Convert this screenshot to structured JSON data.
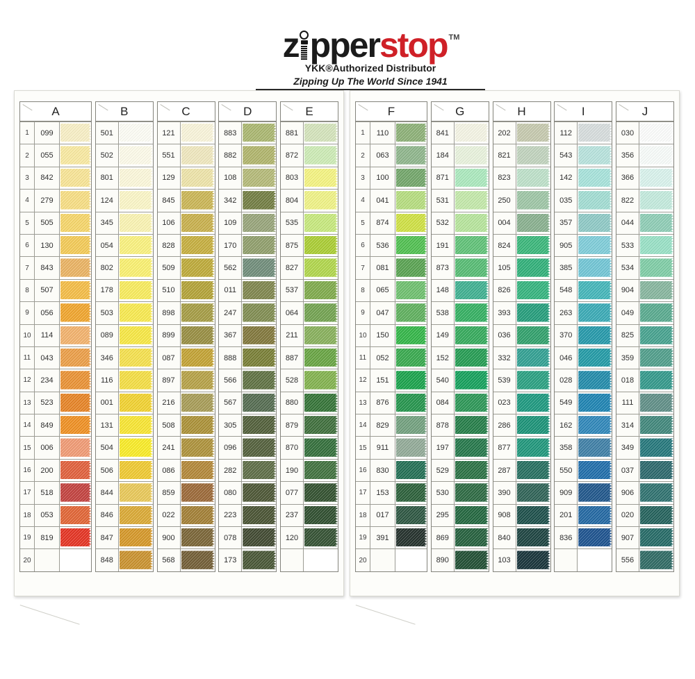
{
  "brand": {
    "logo_part1": "z",
    "logo_part2": "pper",
    "logo_part3": "stop",
    "trademark": "TM",
    "subtitle": "YKK®Authorized Distributor",
    "tagline": "Zipping Up The World Since 1941",
    "logo_black_color": "#1b1b1b",
    "logo_red_color": "#cf2027"
  },
  "pages": [
    {
      "side": "left",
      "columns": [
        {
          "letter": "A",
          "numbered": true,
          "rows": [
            {
              "n": "1",
              "c": "099",
              "hex": "#F7EEC3"
            },
            {
              "n": "2",
              "c": "055",
              "hex": "#F8E89E"
            },
            {
              "n": "3",
              "c": "842",
              "hex": "#F7E392"
            },
            {
              "n": "4",
              "c": "279",
              "hex": "#F6DC80"
            },
            {
              "n": "5",
              "c": "505",
              "hex": "#F5D465"
            },
            {
              "n": "6",
              "c": "130",
              "hex": "#F2C851"
            },
            {
              "n": "7",
              "c": "843",
              "hex": "#E9B05E"
            },
            {
              "n": "8",
              "c": "507",
              "hex": "#F3BA41"
            },
            {
              "n": "9",
              "c": "056",
              "hex": "#EFA227"
            },
            {
              "n": "10",
              "c": "114",
              "hex": "#F1AF68"
            },
            {
              "n": "11",
              "c": "043",
              "hex": "#EA9B42"
            },
            {
              "n": "12",
              "c": "234",
              "hex": "#E88E2E"
            },
            {
              "n": "13",
              "c": "523",
              "hex": "#E5801F"
            },
            {
              "n": "14",
              "c": "849",
              "hex": "#EE8C1C"
            },
            {
              "n": "15",
              "c": "006",
              "hex": "#EF9770"
            },
            {
              "n": "16",
              "c": "200",
              "hex": "#DF5B36"
            },
            {
              "n": "17",
              "c": "518",
              "hex": "#C03C39"
            },
            {
              "n": "18",
              "c": "053",
              "hex": "#E0602F"
            },
            {
              "n": "19",
              "c": "819",
              "hex": "#E32D1C"
            },
            {
              "n": "20",
              "c": "",
              "hex": ""
            }
          ]
        },
        {
          "letter": "B",
          "numbered": false,
          "rows": [
            {
              "c": "501",
              "hex": "#FCFCF4"
            },
            {
              "c": "502",
              "hex": "#FCFAE8"
            },
            {
              "c": "801",
              "hex": "#FBF7D9"
            },
            {
              "c": "124",
              "hex": "#FAF5C5"
            },
            {
              "c": "345",
              "hex": "#F9F2B0"
            },
            {
              "c": "054",
              "hex": "#F9F07A"
            },
            {
              "c": "802",
              "hex": "#F9EF6C"
            },
            {
              "c": "178",
              "hex": "#F7EA58"
            },
            {
              "c": "503",
              "hex": "#F7E84A"
            },
            {
              "c": "089",
              "hex": "#F6E63E"
            },
            {
              "c": "346",
              "hex": "#F4DF48"
            },
            {
              "c": "116",
              "hex": "#F3DC3E"
            },
            {
              "c": "001",
              "hex": "#F0D02A"
            },
            {
              "c": "131",
              "hex": "#F7E42C"
            },
            {
              "c": "504",
              "hex": "#F8EA20"
            },
            {
              "c": "506",
              "hex": "#EEC72B"
            },
            {
              "c": "844",
              "hex": "#E7C654"
            },
            {
              "c": "846",
              "hex": "#D8A62F"
            },
            {
              "c": "847",
              "hex": "#D39422"
            },
            {
              "c": "848",
              "hex": "#C78E28"
            }
          ]
        },
        {
          "letter": "C",
          "numbered": false,
          "rows": [
            {
              "c": "121",
              "hex": "#F8F3D8"
            },
            {
              "c": "551",
              "hex": "#EEE6BC"
            },
            {
              "c": "129",
              "hex": "#ECE2A6"
            },
            {
              "c": "845",
              "hex": "#C8B350"
            },
            {
              "c": "106",
              "hex": "#C6AD47"
            },
            {
              "c": "828",
              "hex": "#C3AB39"
            },
            {
              "c": "509",
              "hex": "#BBA733"
            },
            {
              "c": "510",
              "hex": "#B09F31"
            },
            {
              "c": "898",
              "hex": "#A2993F"
            },
            {
              "c": "899",
              "hex": "#948A3C"
            },
            {
              "c": "087",
              "hex": "#C09F2E"
            },
            {
              "c": "897",
              "hex": "#B39E41"
            },
            {
              "c": "216",
              "hex": "#A49952"
            },
            {
              "c": "508",
              "hex": "#A88D31"
            },
            {
              "c": "241",
              "hex": "#AA8E35"
            },
            {
              "c": "086",
              "hex": "#AF8332"
            },
            {
              "c": "859",
              "hex": "#986432"
            },
            {
              "c": "022",
              "hex": "#9F7B2F"
            },
            {
              "c": "900",
              "hex": "#766031"
            },
            {
              "c": "568",
              "hex": "#6E5930"
            }
          ]
        },
        {
          "letter": "D",
          "numbered": false,
          "rows": [
            {
              "c": "883",
              "hex": "#A7B46C"
            },
            {
              "c": "882",
              "hex": "#ADB267"
            },
            {
              "c": "108",
              "hex": "#B2B774"
            },
            {
              "c": "342",
              "hex": "#6E793D"
            },
            {
              "c": "109",
              "hex": "#94A176"
            },
            {
              "c": "170",
              "hex": "#8C9B67"
            },
            {
              "c": "562",
              "hex": "#6C8976"
            },
            {
              "c": "011",
              "hex": "#7B8248"
            },
            {
              "c": "247",
              "hex": "#7C894C"
            },
            {
              "c": "367",
              "hex": "#7D7336"
            },
            {
              "c": "888",
              "hex": "#747A30"
            },
            {
              "c": "566",
              "hex": "#5A6D3D"
            },
            {
              "c": "567",
              "hex": "#4F674B"
            },
            {
              "c": "305",
              "hex": "#4C5A34"
            },
            {
              "c": "096",
              "hex": "#4E5B36"
            },
            {
              "c": "282",
              "hex": "#596941"
            },
            {
              "c": "080",
              "hex": "#47512F"
            },
            {
              "c": "223",
              "hex": "#444E2D"
            },
            {
              "c": "078",
              "hex": "#3B442B"
            },
            {
              "c": "173",
              "hex": "#435130"
            }
          ]
        },
        {
          "letter": "E",
          "numbered": false,
          "rows": [
            {
              "c": "881",
              "hex": "#D2E2B9"
            },
            {
              "c": "872",
              "hex": "#CBEAB3"
            },
            {
              "c": "803",
              "hex": "#F3F27D"
            },
            {
              "c": "804",
              "hex": "#EEF182"
            },
            {
              "c": "535",
              "hex": "#C4E779"
            },
            {
              "c": "875",
              "hex": "#A7CB2D"
            },
            {
              "c": "827",
              "hex": "#AED446"
            },
            {
              "c": "537",
              "hex": "#7BA746"
            },
            {
              "c": "064",
              "hex": "#6E9F4B"
            },
            {
              "c": "211",
              "hex": "#84AD57"
            },
            {
              "c": "887",
              "hex": "#63A13D"
            },
            {
              "c": "528",
              "hex": "#7EAF49"
            },
            {
              "c": "880",
              "hex": "#2E6F31"
            },
            {
              "c": "879",
              "hex": "#396A36"
            },
            {
              "c": "870",
              "hex": "#2D6A35"
            },
            {
              "c": "190",
              "hex": "#3B6D39"
            },
            {
              "c": "077",
              "hex": "#2C4B29"
            },
            {
              "c": "237",
              "hex": "#294929"
            },
            {
              "c": "120",
              "hex": "#2E4C2D"
            },
            {
              "c": "",
              "hex": ""
            }
          ]
        }
      ]
    },
    {
      "side": "right",
      "columns": [
        {
          "letter": "F",
          "numbered": true,
          "rows": [
            {
              "n": "1",
              "c": "110",
              "hex": "#89AE73"
            },
            {
              "n": "2",
              "c": "063",
              "hex": "#8BB388"
            },
            {
              "n": "3",
              "c": "100",
              "hex": "#6EA365"
            },
            {
              "n": "4",
              "c": "041",
              "hex": "#B3DB7B"
            },
            {
              "n": "5",
              "c": "874",
              "hex": "#CDDF3E"
            },
            {
              "n": "6",
              "c": "536",
              "hex": "#4BBD4B"
            },
            {
              "n": "7",
              "c": "081",
              "hex": "#549F4C"
            },
            {
              "n": "8",
              "c": "065",
              "hex": "#6ABD6A"
            },
            {
              "n": "9",
              "c": "047",
              "hex": "#5AAD59"
            },
            {
              "n": "10",
              "c": "150",
              "hex": "#2DB342"
            },
            {
              "n": "11",
              "c": "052",
              "hex": "#32A649"
            },
            {
              "n": "12",
              "c": "151",
              "hex": "#139F46"
            },
            {
              "n": "13",
              "c": "876",
              "hex": "#1E9147"
            },
            {
              "n": "14",
              "c": "829",
              "hex": "#6E9D7A"
            },
            {
              "n": "15",
              "c": "911",
              "hex": "#8EA794"
            },
            {
              "n": "16",
              "c": "830",
              "hex": "#1C6A4F"
            },
            {
              "n": "17",
              "c": "153",
              "hex": "#255B34"
            },
            {
              "n": "18",
              "c": "017",
              "hex": "#27513C"
            },
            {
              "n": "19",
              "c": "391",
              "hex": "#1D2A25"
            },
            {
              "n": "20",
              "c": "",
              "hex": ""
            }
          ]
        },
        {
          "letter": "G",
          "numbered": false,
          "rows": [
            {
              "c": "841",
              "hex": "#F3F3E3"
            },
            {
              "c": "184",
              "hex": "#E7F1DB"
            },
            {
              "c": "871",
              "hex": "#A8E7BB"
            },
            {
              "c": "531",
              "hex": "#C1E7A7"
            },
            {
              "c": "532",
              "hex": "#B4E399"
            },
            {
              "c": "191",
              "hex": "#5BBF73"
            },
            {
              "c": "873",
              "hex": "#51B96F"
            },
            {
              "c": "148",
              "hex": "#3AAD8D"
            },
            {
              "c": "538",
              "hex": "#2EAD5D"
            },
            {
              "c": "149",
              "hex": "#2FA757"
            },
            {
              "c": "152",
              "hex": "#1E994D"
            },
            {
              "c": "540",
              "hex": "#0E9D57"
            },
            {
              "c": "084",
              "hex": "#269351"
            },
            {
              "c": "878",
              "hex": "#1E7943"
            },
            {
              "c": "197",
              "hex": "#1E7345"
            },
            {
              "c": "529",
              "hex": "#246D3F"
            },
            {
              "c": "530",
              "hex": "#27653D"
            },
            {
              "c": "295",
              "hex": "#1C6239"
            },
            {
              "c": "869",
              "hex": "#1E5B37"
            },
            {
              "c": "890",
              "hex": "#1A492D"
            }
          ]
        },
        {
          "letter": "H",
          "numbered": false,
          "rows": [
            {
              "c": "202",
              "hex": "#C3C7AB"
            },
            {
              "c": "821",
              "hex": "#BED1BB"
            },
            {
              "c": "823",
              "hex": "#BBDFC7"
            },
            {
              "c": "250",
              "hex": "#9BC3A3"
            },
            {
              "c": "004",
              "hex": "#85AD8B"
            },
            {
              "c": "824",
              "hex": "#34B476"
            },
            {
              "c": "105",
              "hex": "#2AAD75"
            },
            {
              "c": "826",
              "hex": "#2FB17A"
            },
            {
              "c": "393",
              "hex": "#1E9A77"
            },
            {
              "c": "036",
              "hex": "#2B9D67"
            },
            {
              "c": "332",
              "hex": "#2C9D8F"
            },
            {
              "c": "539",
              "hex": "#239D7D"
            },
            {
              "c": "023",
              "hex": "#16957B"
            },
            {
              "c": "286",
              "hex": "#148F73"
            },
            {
              "c": "877",
              "hex": "#199377"
            },
            {
              "c": "287",
              "hex": "#1F6A5B"
            },
            {
              "c": "390",
              "hex": "#295E51"
            },
            {
              "c": "908",
              "hex": "#164A45"
            },
            {
              "c": "840",
              "hex": "#163E3B"
            },
            {
              "c": "103",
              "hex": "#112D34"
            }
          ]
        },
        {
          "letter": "I",
          "numbered": false,
          "rows": [
            {
              "c": "112",
              "hex": "#D5DBDB"
            },
            {
              "c": "543",
              "hex": "#B5E1DB"
            },
            {
              "c": "142",
              "hex": "#A4E1D9"
            },
            {
              "c": "035",
              "hex": "#9FDBD1"
            },
            {
              "c": "357",
              "hex": "#8BC7C3"
            },
            {
              "c": "905",
              "hex": "#7BCBD7"
            },
            {
              "c": "385",
              "hex": "#6DC3D3"
            },
            {
              "c": "548",
              "hex": "#3EB3B7"
            },
            {
              "c": "263",
              "hex": "#34A7B3"
            },
            {
              "c": "370",
              "hex": "#1E95A7"
            },
            {
              "c": "046",
              "hex": "#1C97A3"
            },
            {
              "c": "028",
              "hex": "#1B87A7"
            },
            {
              "c": "549",
              "hex": "#177FAF"
            },
            {
              "c": "162",
              "hex": "#2983B7"
            },
            {
              "c": "358",
              "hex": "#397BA3"
            },
            {
              "c": "550",
              "hex": "#1969A7"
            },
            {
              "c": "909",
              "hex": "#195187"
            },
            {
              "c": "201",
              "hex": "#1C639F"
            },
            {
              "c": "836",
              "hex": "#164D8B"
            },
            {
              "c": "",
              "hex": ""
            }
          ]
        },
        {
          "letter": "J",
          "numbered": false,
          "rows": [
            {
              "c": "030",
              "hex": "#FBFCFB"
            },
            {
              "c": "356",
              "hex": "#F7FBF9"
            },
            {
              "c": "366",
              "hex": "#D7F1EB"
            },
            {
              "c": "822",
              "hex": "#C1E9DB"
            },
            {
              "c": "044",
              "hex": "#8BCBB3"
            },
            {
              "c": "533",
              "hex": "#95DFC3"
            },
            {
              "c": "534",
              "hex": "#7BCBA3"
            },
            {
              "c": "904",
              "hex": "#83B39B"
            },
            {
              "c": "049",
              "hex": "#54A78B"
            },
            {
              "c": "825",
              "hex": "#419F8B"
            },
            {
              "c": "359",
              "hex": "#4B9B87"
            },
            {
              "c": "018",
              "hex": "#2D9587"
            },
            {
              "c": "111",
              "hex": "#5B8B83"
            },
            {
              "c": "314",
              "hex": "#3B8377"
            },
            {
              "c": "349",
              "hex": "#1E7377"
            },
            {
              "c": "037",
              "hex": "#256367"
            },
            {
              "c": "906",
              "hex": "#296D6B"
            },
            {
              "c": "020",
              "hex": "#1D5D57"
            },
            {
              "c": "907",
              "hex": "#1E6561"
            },
            {
              "c": "556",
              "hex": "#29655F"
            }
          ]
        }
      ]
    }
  ]
}
